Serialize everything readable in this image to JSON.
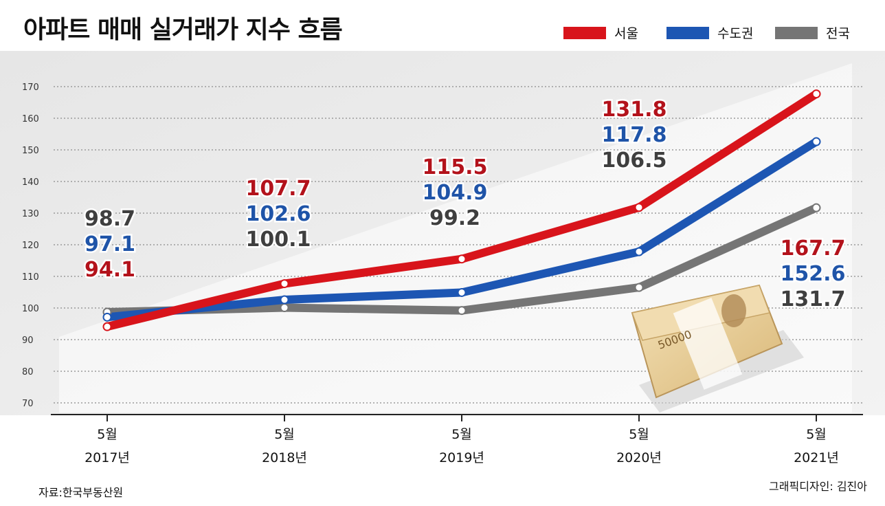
{
  "title": "아파트 매매 실거래가 지수 흐름",
  "legend": [
    {
      "name": "서울",
      "color": "#d8141b"
    },
    {
      "name": "수도권",
      "color": "#1d56b3"
    },
    {
      "name": "전국",
      "color": "#757575"
    }
  ],
  "source": "자료:한국부동산원",
  "credit": "그래픽디자인: 김진아",
  "chart_data": {
    "type": "line",
    "title": "아파트 매매 실거래가 지수 흐름",
    "categories": [
      {
        "month": "5월",
        "year": "2017년"
      },
      {
        "month": "5월",
        "year": "2018년"
      },
      {
        "month": "5월",
        "year": "2019년"
      },
      {
        "month": "5월",
        "year": "2020년"
      },
      {
        "month": "5월",
        "year": "2021년"
      }
    ],
    "y_ticks": [
      70,
      80,
      90,
      100,
      110,
      120,
      130,
      140,
      150,
      160,
      170
    ],
    "ylim": [
      65,
      175
    ],
    "grid": true,
    "series": [
      {
        "name": "서울",
        "color": "#d8141b",
        "label_color": "#b3121b",
        "values": [
          94.1,
          107.7,
          115.5,
          131.8,
          167.7
        ],
        "labels": [
          "94.1",
          "107.7",
          "115.5",
          "131.8",
          "167.7"
        ]
      },
      {
        "name": "수도권",
        "color": "#1d56b3",
        "label_color": "#1f54a8",
        "values": [
          97.1,
          102.6,
          104.9,
          117.8,
          152.6
        ],
        "labels": [
          "97.1",
          "102.6",
          "104.9",
          "117.8",
          "152.6"
        ]
      },
      {
        "name": "전국",
        "color": "#757575",
        "label_color": "#3f3f3f",
        "values": [
          98.7,
          100.1,
          99.2,
          106.5,
          131.7
        ],
        "labels": [
          "98.7",
          "100.1",
          "99.2",
          "106.5",
          "131.7"
        ]
      }
    ],
    "illustration": {
      "banknote": "50000"
    }
  }
}
